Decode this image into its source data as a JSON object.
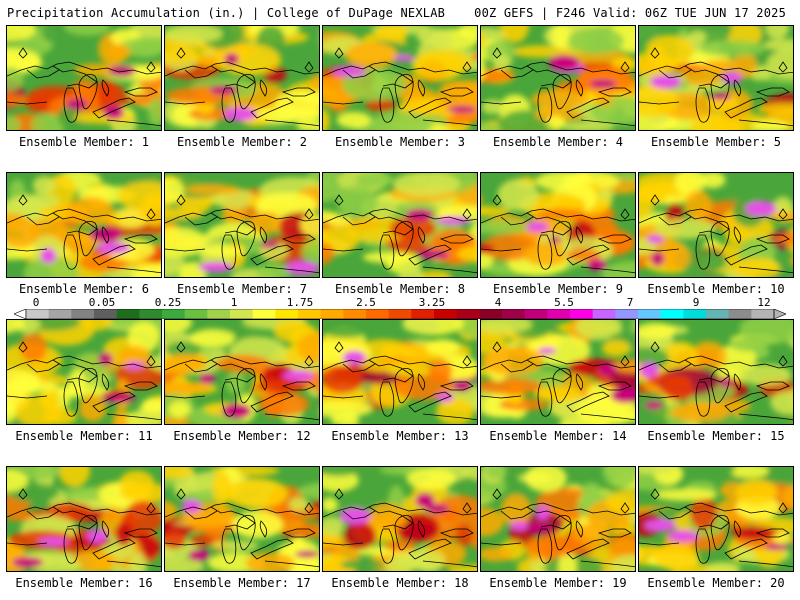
{
  "header": {
    "title": "Precipitation Accumulation (in.) | College of DuPage NEXLAB",
    "run_info": "00Z GEFS | F246 Valid: 06Z TUE JUN 17 2025"
  },
  "colorbar": {
    "labels": [
      "0",
      "0.05",
      "0.25",
      "1",
      "1.75",
      "2.5",
      "3.25",
      "4",
      "5.5",
      "7",
      "9",
      "12"
    ],
    "colors": [
      "#c8c8c8",
      "#a5a5a5",
      "#828282",
      "#5f5f5f",
      "#1e6e1e",
      "#2e8b2e",
      "#3caa3c",
      "#6cc040",
      "#a0d24a",
      "#d2e650",
      "#ffff3c",
      "#ffe600",
      "#ffc800",
      "#ffaa00",
      "#ff8c00",
      "#ff6a00",
      "#f04a00",
      "#e02000",
      "#c80000",
      "#a80018",
      "#8c0028",
      "#a0004a",
      "#c0007a",
      "#e000b0",
      "#ff00e6",
      "#c864ff",
      "#9696ff",
      "#64c8ff",
      "#00ffff",
      "#00dcdc",
      "#64b4b4",
      "#8c8c8c",
      "#b4b4b4"
    ]
  },
  "panels": [
    {
      "label": "Ensemble Member: 1"
    },
    {
      "label": "Ensemble Member: 2"
    },
    {
      "label": "Ensemble Member: 3"
    },
    {
      "label": "Ensemble Member: 4"
    },
    {
      "label": "Ensemble Member: 5"
    },
    {
      "label": "Ensemble Member: 6"
    },
    {
      "label": "Ensemble Member: 7"
    },
    {
      "label": "Ensemble Member: 8"
    },
    {
      "label": "Ensemble Member: 9"
    },
    {
      "label": "Ensemble Member: 10"
    },
    {
      "label": "Ensemble Member: 11"
    },
    {
      "label": "Ensemble Member: 12"
    },
    {
      "label": "Ensemble Member: 13"
    },
    {
      "label": "Ensemble Member: 14"
    },
    {
      "label": "Ensemble Member: 15"
    },
    {
      "label": "Ensemble Member: 16"
    },
    {
      "label": "Ensemble Member: 17"
    },
    {
      "label": "Ensemble Member: 18"
    },
    {
      "label": "Ensemble Member: 19"
    },
    {
      "label": "Ensemble Member: 20"
    }
  ]
}
